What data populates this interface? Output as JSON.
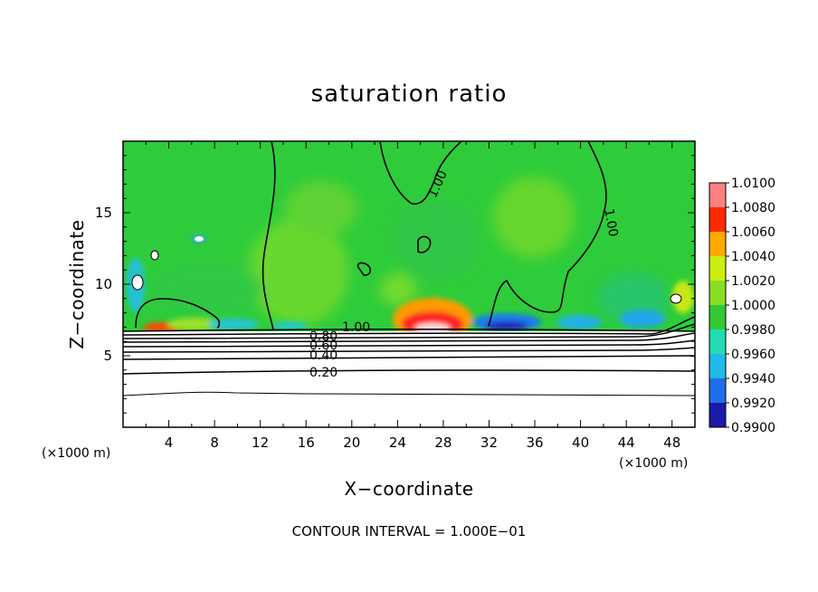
{
  "chart_data": {
    "type": "heatmap",
    "title": "saturation ratio",
    "xlabel": "X−coordinate",
    "ylabel": "Z−coordinate",
    "x_unit": "(×1000 m)",
    "y_unit": "(×1000 m)",
    "xlim": [
      0,
      50
    ],
    "ylim": [
      0,
      20
    ],
    "x_ticks": [
      4,
      8,
      12,
      16,
      20,
      24,
      28,
      32,
      36,
      40,
      44,
      48
    ],
    "y_ticks": [
      5,
      10,
      15
    ],
    "footer": "CONTOUR INTERVAL = 1.000E−01",
    "colorbar": {
      "levels": [
        "0.9900",
        "0.9920",
        "0.9940",
        "0.9960",
        "0.9980",
        "1.0000",
        "1.0020",
        "1.0040",
        "1.0060",
        "1.0080",
        "1.0100"
      ],
      "colors": [
        "#6a1b9a",
        "#1a1aa8",
        "#1f6fe8",
        "#22b8e8",
        "#22dcb0",
        "#33c833",
        "#88dd22",
        "#ccee11",
        "#ffaa00",
        "#ff2a00",
        "#ff8080",
        "#f4a8a8"
      ]
    },
    "contour_labels": [
      "1.00",
      "1.00",
      "1.00",
      "0.80",
      "0.60",
      "0.40",
      "0.20"
    ],
    "contour_levels": [
      1.0,
      0.9,
      0.8,
      0.7,
      0.6,
      0.5,
      0.4,
      0.3,
      0.2,
      0.1
    ],
    "field_base_value": 1.0,
    "features": [
      {
        "region": "surface hotspot",
        "x_center": 27.5,
        "z": 7.2,
        "value": 1.01
      },
      {
        "region": "surface minimum",
        "x_center": 33.5,
        "z": 7.0,
        "value": 0.993
      }
    ]
  }
}
